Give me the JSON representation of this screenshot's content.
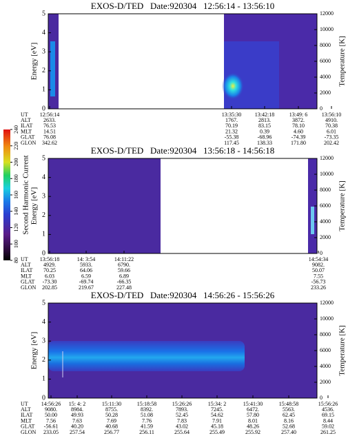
{
  "colorbar": {
    "label": "Second Harmonic Current",
    "lim": [
      80,
      240
    ],
    "ticks": [
      240,
      220,
      200,
      180,
      160,
      140,
      120,
      100,
      80
    ]
  },
  "panels": [
    {
      "title": "EXOS-D/TED   Date:920304   12:56:14 - 13:56:10",
      "energy_label": "Energy [eV]",
      "energy_lim": [
        0,
        5
      ],
      "energy_ticks": [
        0,
        1,
        2,
        3,
        4,
        5
      ],
      "temp_label": "Temperature [K]",
      "temp_lim": [
        0,
        12000
      ],
      "temp_ticks": [
        0,
        2000,
        4000,
        6000,
        8000,
        10000,
        12000
      ],
      "ephemeris": {
        "labels": [
          "UT",
          "ALT",
          "ILAT",
          "MLT",
          "GLAT",
          "GLON"
        ],
        "columns": [
          [
            "12:56:14",
            "2633.",
            "76.53",
            "14.51",
            "76.08",
            "342.62"
          ],
          [
            "13:35:30",
            "1767.",
            "70.19",
            "21.32",
            "-55.38",
            "117.45"
          ],
          [
            "13:42:18",
            "2813.",
            "83.15",
            "0.39",
            "-68.96",
            "138.33"
          ],
          [
            "13:49: 6",
            "3872.",
            "78.10",
            "4.60",
            "-74.39",
            "171.80"
          ],
          [
            "13:56:10",
            "4910.",
            "70.38",
            "6.01",
            "-73.35",
            "202.42"
          ]
        ]
      }
    },
    {
      "title": "EXOS-D/TED   Date:920304   13:56:18 - 14:56:18",
      "energy_label": "Energy [eV]",
      "energy_lim": [
        0,
        5
      ],
      "energy_ticks": [
        0,
        1,
        2,
        3,
        4,
        5
      ],
      "temp_label": "Temperature [K]",
      "temp_lim": [
        0,
        12000
      ],
      "temp_ticks": [
        0,
        2000,
        4000,
        6000,
        8000,
        10000,
        12000
      ],
      "ephemeris": {
        "labels": [
          "UT",
          "ALT",
          "ILAT",
          "MLT",
          "GLAT",
          "GLON"
        ],
        "columns": [
          [
            "13:56:18",
            "4929.",
            "70.25",
            "6.03",
            "-73.30",
            "202.85"
          ],
          [
            "14: 3:54",
            "5933.",
            "64.06",
            "6.59",
            "-69.74",
            "219.67"
          ],
          [
            "14:11:22",
            "6790.",
            "59.66",
            "6.89",
            "-66.35",
            "227.48"
          ],
          [
            "14:54:34",
            "9082.",
            "50.07",
            "7.55",
            "-56.73",
            "233.26"
          ]
        ]
      }
    },
    {
      "title": "EXOS-D/TED   Date:920304   14:56:26 - 15:56:26",
      "energy_label": "Energy [eV]",
      "energy_lim": [
        0,
        5
      ],
      "energy_ticks": [
        0,
        1,
        2,
        3,
        4,
        5
      ],
      "temp_label": "Temperature [K]",
      "temp_lim": [
        0,
        12000
      ],
      "temp_ticks": [
        0,
        2000,
        4000,
        6000,
        8000,
        10000,
        12000
      ],
      "ephemeris": {
        "labels": [
          "UT",
          "ALT",
          "ILAT",
          "MLT",
          "GLAT",
          "GLON"
        ],
        "columns": [
          [
            "14:56:26",
            "9080.",
            "50.00",
            "7.56",
            "-56.61",
            "233.05"
          ],
          [
            "15: 4: 2",
            "8984.",
            "49.93",
            "7.63",
            "40.20",
            "257.54"
          ],
          [
            "15:11:30",
            "8755.",
            "50.28",
            "7.69",
            "40.68",
            "256.77"
          ],
          [
            "15:18:58",
            "8392.",
            "51.08",
            "7.76",
            "41.59",
            "256.11"
          ],
          [
            "15:26:26",
            "7893.",
            "52.45",
            "7.83",
            "43.02",
            "255.64"
          ],
          [
            "15:34: 2",
            "7245.",
            "54.62",
            "7.91",
            "45.18",
            "255.49"
          ],
          [
            "15:41:30",
            "6472.",
            "57.80",
            "8.01",
            "48.26",
            "255.92"
          ],
          [
            "15:48:58",
            "5563.",
            "62.45",
            "8.16",
            "52.68",
            "257.40"
          ],
          [
            "15:56:26",
            "4536.",
            "69.15",
            "8.44",
            "59.02",
            "261.25"
          ]
        ]
      }
    }
  ]
}
